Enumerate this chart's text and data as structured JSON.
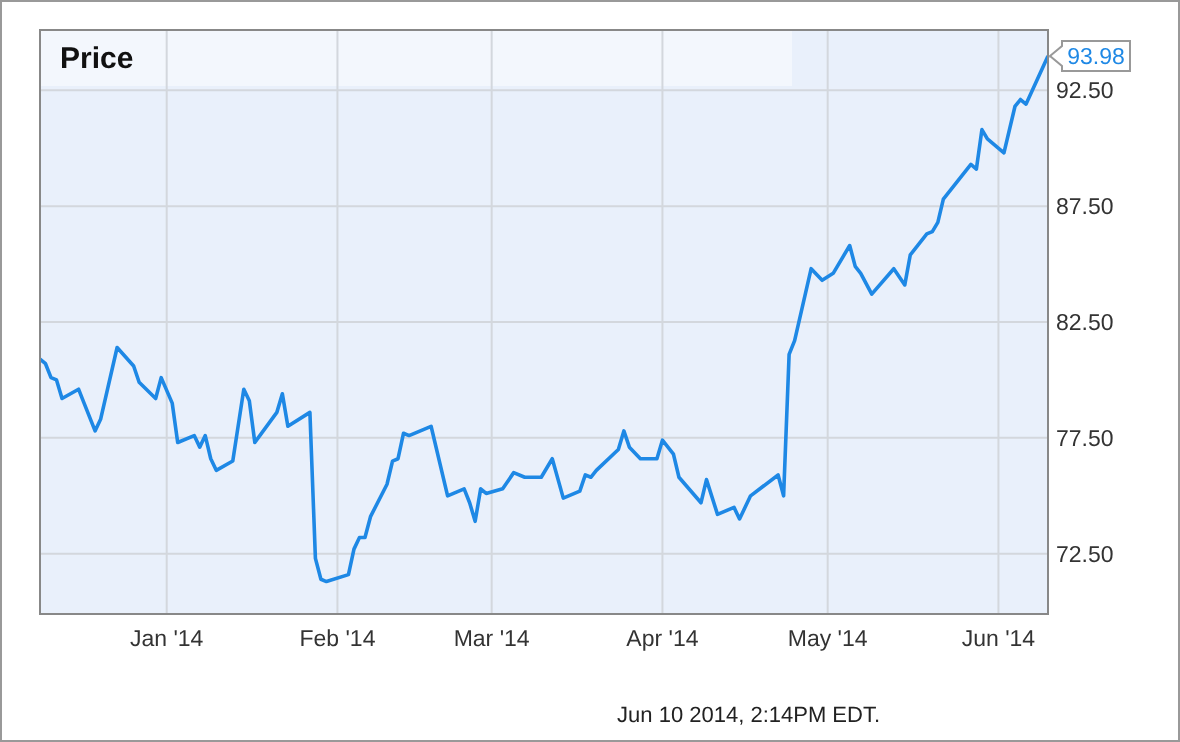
{
  "chart_data": {
    "type": "line",
    "title": "Price",
    "x": [
      "2013-12-09",
      "2013-12-10",
      "2013-12-11",
      "2013-12-12",
      "2013-12-13",
      "2013-12-16",
      "2013-12-17",
      "2013-12-19",
      "2013-12-20",
      "2013-12-23",
      "2013-12-26",
      "2013-12-27",
      "2013-12-30",
      "2013-12-31",
      "2014-01-02",
      "2014-01-03",
      "2014-01-06",
      "2014-01-07",
      "2014-01-08",
      "2014-01-09",
      "2014-01-10",
      "2014-01-13",
      "2014-01-15",
      "2014-01-16",
      "2014-01-17",
      "2014-01-21",
      "2014-01-22",
      "2014-01-23",
      "2014-01-27",
      "2014-01-28",
      "2014-01-29",
      "2014-01-30",
      "2014-02-03",
      "2014-02-04",
      "2014-02-05",
      "2014-02-06",
      "2014-02-07",
      "2014-02-10",
      "2014-02-11",
      "2014-02-12",
      "2014-02-13",
      "2014-02-14",
      "2014-02-18",
      "2014-02-21",
      "2014-02-24",
      "2014-02-25",
      "2014-02-26",
      "2014-02-27",
      "2014-02-28",
      "2014-03-03",
      "2014-03-05",
      "2014-03-07",
      "2014-03-10",
      "2014-03-12",
      "2014-03-14",
      "2014-03-17",
      "2014-03-18",
      "2014-03-19",
      "2014-03-20",
      "2014-03-24",
      "2014-03-25",
      "2014-03-26",
      "2014-03-28",
      "2014-03-31",
      "2014-04-01",
      "2014-04-03",
      "2014-04-04",
      "2014-04-08",
      "2014-04-09",
      "2014-04-11",
      "2014-04-14",
      "2014-04-15",
      "2014-04-17",
      "2014-04-22",
      "2014-04-23",
      "2014-04-24",
      "2014-04-25",
      "2014-04-28",
      "2014-04-30",
      "2014-05-02",
      "2014-05-05",
      "2014-05-06",
      "2014-05-07",
      "2014-05-09",
      "2014-05-13",
      "2014-05-15",
      "2014-05-16",
      "2014-05-19",
      "2014-05-20",
      "2014-05-21",
      "2014-05-22",
      "2014-05-27",
      "2014-05-28",
      "2014-05-29",
      "2014-05-30",
      "2014-06-02",
      "2014-06-04",
      "2014-06-05",
      "2014-06-06",
      "2014-06-10"
    ],
    "values": [
      80.9,
      80.7,
      80.1,
      80.0,
      79.2,
      79.6,
      79.0,
      77.8,
      78.3,
      81.4,
      80.6,
      79.9,
      79.2,
      80.1,
      79.0,
      77.3,
      77.6,
      77.1,
      77.6,
      76.6,
      76.1,
      76.5,
      79.6,
      79.1,
      77.3,
      78.6,
      79.4,
      78.0,
      78.6,
      72.3,
      71.4,
      71.3,
      71.6,
      72.7,
      73.2,
      73.2,
      74.1,
      75.5,
      76.5,
      76.6,
      77.7,
      77.6,
      78.0,
      75.0,
      75.3,
      74.7,
      73.9,
      75.3,
      75.1,
      75.3,
      76.0,
      75.8,
      75.8,
      76.6,
      74.9,
      75.2,
      75.9,
      75.8,
      76.1,
      77.0,
      77.8,
      77.1,
      76.6,
      76.6,
      77.4,
      76.8,
      75.8,
      74.7,
      75.7,
      74.2,
      74.5,
      74.0,
      75.0,
      75.9,
      75.0,
      81.1,
      81.7,
      84.8,
      84.3,
      84.6,
      85.8,
      84.9,
      84.6,
      83.7,
      84.8,
      84.1,
      85.4,
      86.3,
      86.4,
      86.8,
      87.8,
      89.3,
      89.1,
      90.8,
      90.4,
      89.8,
      91.8,
      92.1,
      91.9,
      93.98
    ],
    "value_labels": [
      null,
      null,
      null,
      null,
      null,
      null,
      null,
      null,
      null,
      null,
      null,
      null,
      null,
      null,
      null,
      null,
      null,
      null,
      null,
      null,
      null,
      null,
      null,
      null,
      null,
      null,
      null,
      null,
      null,
      null,
      null,
      null,
      null,
      null,
      null,
      null,
      null,
      null,
      null,
      null,
      null,
      null,
      null,
      null,
      null,
      null,
      null,
      null,
      null,
      null,
      null,
      null,
      null,
      null,
      null,
      null,
      null,
      null,
      null,
      null,
      null,
      null,
      null,
      null,
      null,
      null,
      null,
      null,
      null,
      null,
      null,
      null,
      null,
      null,
      null,
      null,
      null,
      null,
      null,
      null,
      null,
      null,
      null,
      null,
      null,
      null,
      null,
      null,
      null,
      null,
      null,
      null,
      null,
      null,
      null,
      null,
      null,
      null,
      null,
      "93.98"
    ],
    "color": "#1e88e5",
    "xlim": [
      "2013-12-09",
      "2014-06-10"
    ],
    "ylim": [
      69.9,
      95.1
    ],
    "xticks": [
      {
        "value": "2014-01-01",
        "label": "Jan '14"
      },
      {
        "value": "2014-02-01",
        "label": "Feb '14"
      },
      {
        "value": "2014-03-01",
        "label": "Mar '14"
      },
      {
        "value": "2014-04-01",
        "label": "Apr '14"
      },
      {
        "value": "2014-05-01",
        "label": "May '14"
      },
      {
        "value": "2014-06-01",
        "label": "Jun '14"
      }
    ],
    "yticks": [
      {
        "value": 72.5,
        "label": "72.50"
      },
      {
        "value": 77.5,
        "label": "77.50"
      },
      {
        "value": 82.5,
        "label": "82.50"
      },
      {
        "value": 87.5,
        "label": "87.50"
      },
      {
        "value": 92.5,
        "label": "92.50"
      }
    ],
    "grid": true,
    "marker": "none",
    "line_style": "solid",
    "annotations": [
      "Jun 10 2014, 2:14PM EDT."
    ]
  }
}
